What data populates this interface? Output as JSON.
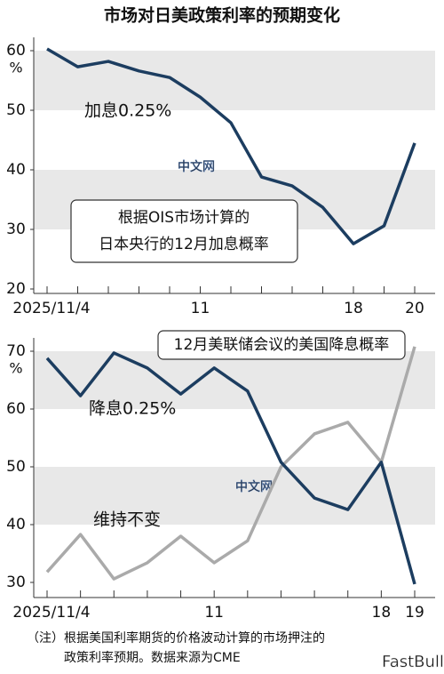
{
  "title": "市场对日美政策利率的预期变化",
  "note": [
    "（注）根据美国利率期货的价格波动计算的市场押注的",
    "政策利率预期。数据来源为CME"
  ],
  "watermarks": [
    "中文网",
    "FastBull"
  ],
  "chart_data": [
    {
      "type": "line",
      "categories": [
        "2025/11/4",
        null,
        null,
        null,
        null,
        "11",
        null,
        null,
        null,
        null,
        "18",
        null,
        "20"
      ],
      "series": [
        {
          "name": "加息0.25%",
          "color": "#1c3d60",
          "values": [
            60.3,
            57.3,
            58.2,
            56.6,
            55.5,
            52.2,
            47.9,
            38.8,
            37.3,
            33.7,
            27.6,
            30.6,
            44.5
          ]
        }
      ],
      "ylim": [
        20,
        60
      ],
      "yticks": [
        20,
        30,
        40,
        50,
        60
      ],
      "unit": "%",
      "annotation": [
        "根据OIS市场计算的",
        "日本央行的12月加息概率"
      ]
    },
    {
      "type": "line",
      "categories": [
        "2025/11/4",
        null,
        null,
        null,
        null,
        "11",
        null,
        null,
        null,
        null,
        "18",
        "19"
      ],
      "series": [
        {
          "name": "降息0.25%",
          "color": "#1c3d60",
          "values": [
            68.8,
            62.3,
            69.7,
            67.1,
            62.6,
            67.1,
            63.1,
            50.8,
            44.6,
            42.6,
            50.8,
            29.7
          ]
        },
        {
          "name": "维持不变",
          "color": "#aaaaaa",
          "values": [
            31.8,
            38.3,
            30.6,
            33.4,
            38.0,
            33.4,
            37.2,
            50.0,
            55.7,
            57.7,
            50.8,
            70.8
          ]
        }
      ],
      "ylim": [
        30,
        70
      ],
      "yticks": [
        30,
        40,
        50,
        60,
        70
      ],
      "unit": "%",
      "annotation": [
        "12月美联储会议的美国降息概率"
      ]
    }
  ]
}
